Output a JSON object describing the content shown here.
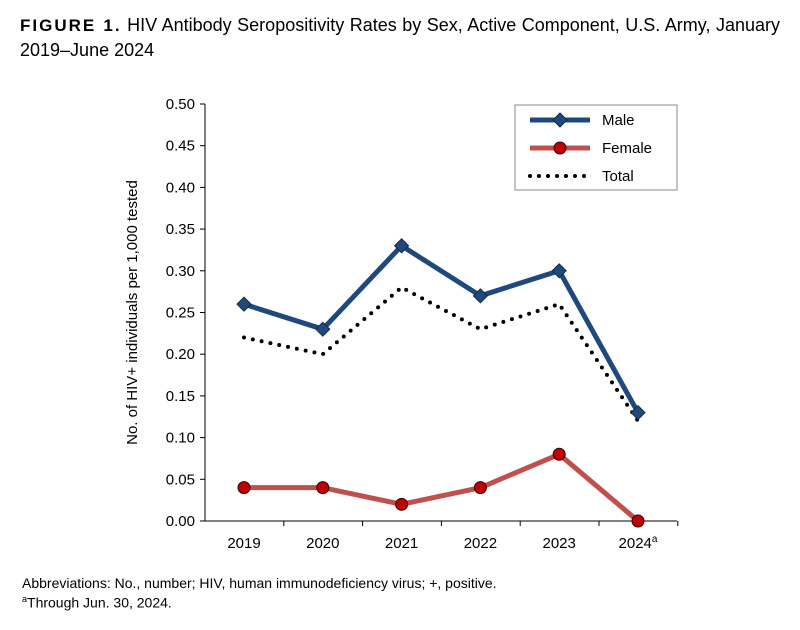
{
  "figure_label": "FIGURE 1.",
  "title": "HIV Antibody Seropositivity Rates by Sex, Active Component, U.S. Army, January 2019–June 2024",
  "footnotes": {
    "abbreviations": "Abbreviations: No., number; HIV, human immunodeficiency virus; +, positive.",
    "a_marker": "a",
    "a_text": "Through Jun. 30, 2024."
  },
  "chart_data": {
    "type": "line",
    "title": "HIV Antibody Seropositivity Rates by Sex, Active Component, U.S. Army, January 2019–June 2024",
    "xlabel": "",
    "ylabel": "No. of HIV+ individuals per 1,000 tested",
    "categories": [
      "2019",
      "2020",
      "2021",
      "2022",
      "2023",
      "2024"
    ],
    "category_superscripts": [
      "",
      "",
      "",
      "",
      "",
      "a"
    ],
    "ylim": [
      0,
      0.5
    ],
    "yticks": [
      "0.00",
      "0.05",
      "0.10",
      "0.15",
      "0.20",
      "0.25",
      "0.30",
      "0.35",
      "0.40",
      "0.45",
      "0.50"
    ],
    "grid": false,
    "legend_position": "top-right",
    "series": [
      {
        "name": "Male",
        "values": [
          0.26,
          0.23,
          0.33,
          0.27,
          0.3,
          0.13
        ],
        "color": "#1f497d",
        "marker": "diamond",
        "line": "solid"
      },
      {
        "name": "Female",
        "values": [
          0.04,
          0.04,
          0.02,
          0.04,
          0.08,
          0.0
        ],
        "color": "#c0504d",
        "marker_color": "#c00000",
        "marker": "circle",
        "line": "solid"
      },
      {
        "name": "Total",
        "values": [
          0.22,
          0.2,
          0.28,
          0.23,
          0.26,
          0.12
        ],
        "color": "#000000",
        "marker": "none",
        "line": "dotted"
      }
    ]
  }
}
